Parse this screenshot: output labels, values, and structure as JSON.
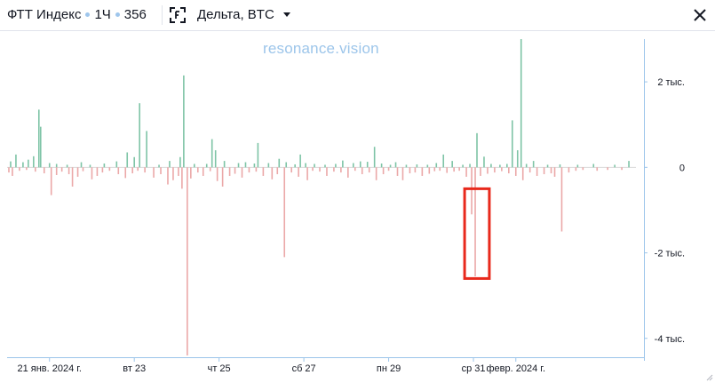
{
  "header": {
    "index_name": "ФТТ Индекс",
    "interval": "1Ч",
    "count": "356",
    "metric_label": "Дельта, BTC"
  },
  "watermark": "resonance.vision",
  "icons": {
    "metric": "bracket-focus-icon",
    "dropdown": "caret-down-icon",
    "close": "close-icon",
    "resize": "resize-handle-icon"
  },
  "colors": {
    "positive": "#7ec4a6",
    "negative": "#eba8a8",
    "highlight": "#e8291c",
    "axis": "#9cc5ea"
  },
  "chart_data": {
    "type": "bar",
    "title": "",
    "xlabel": "",
    "ylabel": "",
    "ylim": [
      -4400,
      3000
    ],
    "y_ticks": [
      {
        "value": 2000,
        "label": "2 тыс."
      },
      {
        "value": 0,
        "label": "0"
      },
      {
        "value": -2000,
        "label": "-2 тыс."
      },
      {
        "value": -4000,
        "label": "-4 тыс."
      }
    ],
    "x_ticks": [
      {
        "x": 24,
        "label": "21 янв. 2024 г."
      },
      {
        "x": 72,
        "label": "вт 23"
      },
      {
        "x": 120,
        "label": "чт 25"
      },
      {
        "x": 168,
        "label": "сб 27"
      },
      {
        "x": 216,
        "label": "пн 29"
      },
      {
        "x": 264,
        "label": "ср 31"
      },
      {
        "x": 288,
        "label": "февр. 2024 г."
      }
    ],
    "x_unit": "hours since first bar",
    "x_range": [
      0,
      356
    ],
    "series": [
      {
        "values": [
          {
            "x": 2,
            "y": 140
          },
          {
            "x": 5,
            "y": 300
          },
          {
            "x": 9,
            "y": 120
          },
          {
            "x": 12,
            "y": 180
          },
          {
            "x": 15,
            "y": 260
          },
          {
            "x": 18,
            "y": 1350
          },
          {
            "x": 19,
            "y": 950
          },
          {
            "x": 24,
            "y": 100
          },
          {
            "x": 28,
            "y": 80
          },
          {
            "x": 34,
            "y": 60
          },
          {
            "x": 42,
            "y": 120
          },
          {
            "x": 47,
            "y": 60
          },
          {
            "x": 55,
            "y": 90
          },
          {
            "x": 62,
            "y": 140
          },
          {
            "x": 68,
            "y": 350
          },
          {
            "x": 72,
            "y": 240
          },
          {
            "x": 75,
            "y": 1500
          },
          {
            "x": 79,
            "y": 850
          },
          {
            "x": 86,
            "y": 60
          },
          {
            "x": 92,
            "y": 150
          },
          {
            "x": 98,
            "y": 240
          },
          {
            "x": 100,
            "y": 2150
          },
          {
            "x": 106,
            "y": 80
          },
          {
            "x": 113,
            "y": 80
          },
          {
            "x": 116,
            "y": 660
          },
          {
            "x": 118,
            "y": 400
          },
          {
            "x": 123,
            "y": 150
          },
          {
            "x": 131,
            "y": 100
          },
          {
            "x": 135,
            "y": 120
          },
          {
            "x": 140,
            "y": 90
          },
          {
            "x": 142,
            "y": 570
          },
          {
            "x": 148,
            "y": 100
          },
          {
            "x": 154,
            "y": 200
          },
          {
            "x": 158,
            "y": 120
          },
          {
            "x": 163,
            "y": 70
          },
          {
            "x": 166,
            "y": 300
          },
          {
            "x": 169,
            "y": 100
          },
          {
            "x": 174,
            "y": 80
          },
          {
            "x": 180,
            "y": 60
          },
          {
            "x": 186,
            "y": 80
          },
          {
            "x": 190,
            "y": 160
          },
          {
            "x": 196,
            "y": 100
          },
          {
            "x": 200,
            "y": 140
          },
          {
            "x": 204,
            "y": 130
          },
          {
            "x": 208,
            "y": 480
          },
          {
            "x": 212,
            "y": 90
          },
          {
            "x": 217,
            "y": 60
          },
          {
            "x": 220,
            "y": 120
          },
          {
            "x": 226,
            "y": 60
          },
          {
            "x": 232,
            "y": 70
          },
          {
            "x": 238,
            "y": 60
          },
          {
            "x": 243,
            "y": 100
          },
          {
            "x": 247,
            "y": 300
          },
          {
            "x": 252,
            "y": 150
          },
          {
            "x": 258,
            "y": 60
          },
          {
            "x": 262,
            "y": 80
          },
          {
            "x": 266,
            "y": 800
          },
          {
            "x": 270,
            "y": 250
          },
          {
            "x": 274,
            "y": 80
          },
          {
            "x": 279,
            "y": 60
          },
          {
            "x": 283,
            "y": 80
          },
          {
            "x": 286,
            "y": 1100
          },
          {
            "x": 289,
            "y": 400
          },
          {
            "x": 291,
            "y": 3000
          },
          {
            "x": 294,
            "y": 80
          },
          {
            "x": 298,
            "y": 150
          },
          {
            "x": 306,
            "y": 60
          },
          {
            "x": 313,
            "y": 70
          },
          {
            "x": 323,
            "y": 60
          },
          {
            "x": 332,
            "y": 80
          },
          {
            "x": 344,
            "y": 60
          },
          {
            "x": 352,
            "y": 150
          }
        ]
      },
      {
        "values": [
          {
            "x": 1,
            "y": -120
          },
          {
            "x": 3,
            "y": -200
          },
          {
            "x": 7,
            "y": -80
          },
          {
            "x": 11,
            "y": -60
          },
          {
            "x": 16,
            "y": -100
          },
          {
            "x": 21,
            "y": -140
          },
          {
            "x": 25,
            "y": -650
          },
          {
            "x": 28,
            "y": -180
          },
          {
            "x": 31,
            "y": -100
          },
          {
            "x": 35,
            "y": -160
          },
          {
            "x": 37,
            "y": -450
          },
          {
            "x": 40,
            "y": -220
          },
          {
            "x": 43,
            "y": -90
          },
          {
            "x": 48,
            "y": -280
          },
          {
            "x": 51,
            "y": -200
          },
          {
            "x": 54,
            "y": -120
          },
          {
            "x": 58,
            "y": -80
          },
          {
            "x": 63,
            "y": -160
          },
          {
            "x": 67,
            "y": -250
          },
          {
            "x": 71,
            "y": -140
          },
          {
            "x": 74,
            "y": -80
          },
          {
            "x": 78,
            "y": -120
          },
          {
            "x": 83,
            "y": -240
          },
          {
            "x": 87,
            "y": -160
          },
          {
            "x": 91,
            "y": -400
          },
          {
            "x": 94,
            "y": -300
          },
          {
            "x": 97,
            "y": -200
          },
          {
            "x": 99,
            "y": -500
          },
          {
            "x": 102,
            "y": -4400
          },
          {
            "x": 104,
            "y": -260
          },
          {
            "x": 108,
            "y": -120
          },
          {
            "x": 111,
            "y": -200
          },
          {
            "x": 115,
            "y": -90
          },
          {
            "x": 119,
            "y": -320
          },
          {
            "x": 122,
            "y": -450
          },
          {
            "x": 126,
            "y": -200
          },
          {
            "x": 129,
            "y": -150
          },
          {
            "x": 133,
            "y": -240
          },
          {
            "x": 137,
            "y": -120
          },
          {
            "x": 141,
            "y": -100
          },
          {
            "x": 145,
            "y": -200
          },
          {
            "x": 150,
            "y": -280
          },
          {
            "x": 153,
            "y": -160
          },
          {
            "x": 157,
            "y": -2100
          },
          {
            "x": 161,
            "y": -120
          },
          {
            "x": 165,
            "y": -220
          },
          {
            "x": 170,
            "y": -300
          },
          {
            "x": 173,
            "y": -80
          },
          {
            "x": 177,
            "y": -100
          },
          {
            "x": 181,
            "y": -200
          },
          {
            "x": 185,
            "y": -100
          },
          {
            "x": 189,
            "y": -120
          },
          {
            "x": 193,
            "y": -240
          },
          {
            "x": 197,
            "y": -80
          },
          {
            "x": 201,
            "y": -160
          },
          {
            "x": 205,
            "y": -120
          },
          {
            "x": 209,
            "y": -300
          },
          {
            "x": 213,
            "y": -160
          },
          {
            "x": 216,
            "y": -80
          },
          {
            "x": 221,
            "y": -200
          },
          {
            "x": 224,
            "y": -300
          },
          {
            "x": 228,
            "y": -140
          },
          {
            "x": 231,
            "y": -120
          },
          {
            "x": 235,
            "y": -200
          },
          {
            "x": 239,
            "y": -150
          },
          {
            "x": 242,
            "y": -90
          },
          {
            "x": 245,
            "y": -80
          },
          {
            "x": 249,
            "y": -130
          },
          {
            "x": 253,
            "y": -100
          },
          {
            "x": 256,
            "y": -80
          },
          {
            "x": 260,
            "y": -220
          },
          {
            "x": 263,
            "y": -1100
          },
          {
            "x": 265,
            "y": -2550
          },
          {
            "x": 268,
            "y": -200
          },
          {
            "x": 272,
            "y": -150
          },
          {
            "x": 276,
            "y": -120
          },
          {
            "x": 280,
            "y": -90
          },
          {
            "x": 284,
            "y": -140
          },
          {
            "x": 288,
            "y": -200
          },
          {
            "x": 292,
            "y": -300
          },
          {
            "x": 296,
            "y": -120
          },
          {
            "x": 300,
            "y": -200
          },
          {
            "x": 304,
            "y": -160
          },
          {
            "x": 308,
            "y": -140
          },
          {
            "x": 310,
            "y": -220
          },
          {
            "x": 314,
            "y": -1500
          },
          {
            "x": 318,
            "y": -120
          },
          {
            "x": 322,
            "y": -80
          },
          {
            "x": 326,
            "y": -60
          },
          {
            "x": 334,
            "y": -80
          },
          {
            "x": 340,
            "y": -60
          },
          {
            "x": 348,
            "y": -60
          }
        ]
      }
    ],
    "highlight": {
      "x_from": 259,
      "x_to": 273,
      "y_from": -2600,
      "y_to": -500
    }
  }
}
